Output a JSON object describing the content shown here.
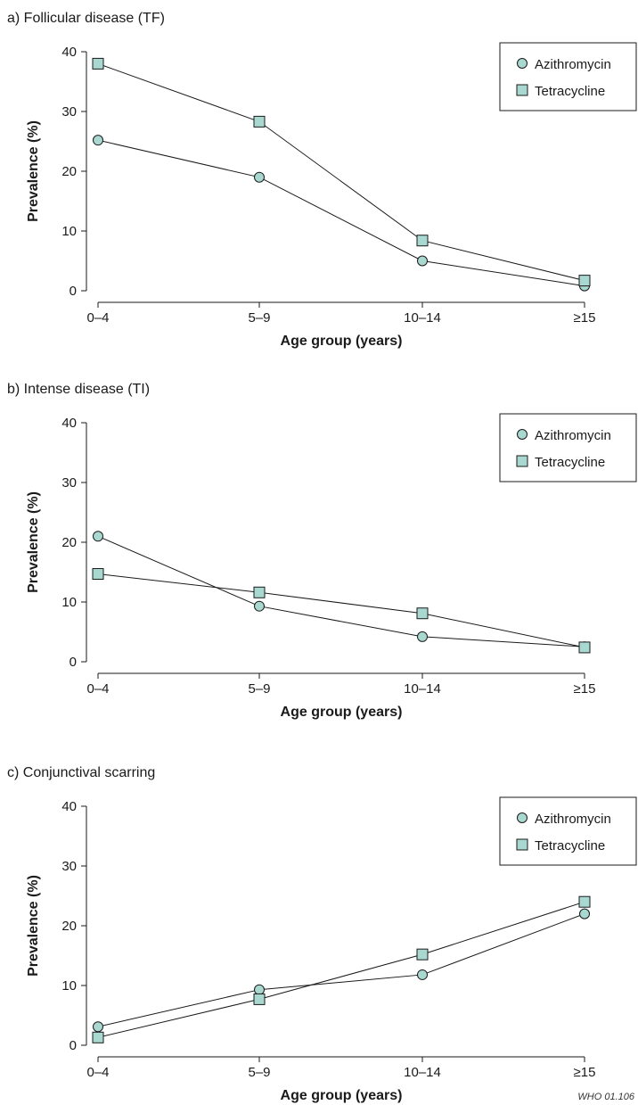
{
  "credit": "WHO 01.106",
  "colors": {
    "marker_fill": "#a8d8d0",
    "stroke": "#1a1a1a"
  },
  "chart_data": [
    {
      "type": "line",
      "title": "a) Follicular disease (TF)",
      "xlabel": "Age group (years)",
      "ylabel": "Prevalence (%)",
      "categories": [
        "0–4",
        "5–9",
        "10–14",
        "≥15"
      ],
      "ylim": [
        0,
        40
      ],
      "yticks": [
        0,
        10,
        20,
        30,
        40
      ],
      "grid": false,
      "legend_position": "top-right",
      "series": [
        {
          "name": "Azithromycin",
          "marker": "circle",
          "values": [
            25.2,
            19.0,
            5.0,
            0.8
          ]
        },
        {
          "name": "Tetracycline",
          "marker": "square",
          "values": [
            38.0,
            28.3,
            8.4,
            1.7
          ]
        }
      ]
    },
    {
      "type": "line",
      "title": "b) Intense disease (TI)",
      "xlabel": "Age group (years)",
      "ylabel": "Prevalence (%)",
      "categories": [
        "0–4",
        "5–9",
        "10–14",
        "≥15"
      ],
      "ylim": [
        0,
        40
      ],
      "yticks": [
        0,
        10,
        20,
        30,
        40
      ],
      "grid": false,
      "legend_position": "top-right",
      "series": [
        {
          "name": "Azithromycin",
          "marker": "circle",
          "values": [
            21.0,
            9.3,
            4.2,
            2.5
          ]
        },
        {
          "name": "Tetracycline",
          "marker": "square",
          "values": [
            14.7,
            11.6,
            8.1,
            2.4
          ]
        }
      ]
    },
    {
      "type": "line",
      "title": "c) Conjunctival scarring",
      "xlabel": "Age group (years)",
      "ylabel": "Prevalence (%)",
      "categories": [
        "0–4",
        "5–9",
        "10–14",
        "≥15"
      ],
      "ylim": [
        0,
        40
      ],
      "yticks": [
        0,
        10,
        20,
        30,
        40
      ],
      "grid": false,
      "legend_position": "top-right",
      "series": [
        {
          "name": "Azithromycin",
          "marker": "circle",
          "values": [
            3.1,
            9.3,
            11.8,
            22.0
          ]
        },
        {
          "name": "Tetracycline",
          "marker": "square",
          "values": [
            1.3,
            7.7,
            15.2,
            24.0
          ]
        }
      ]
    }
  ]
}
